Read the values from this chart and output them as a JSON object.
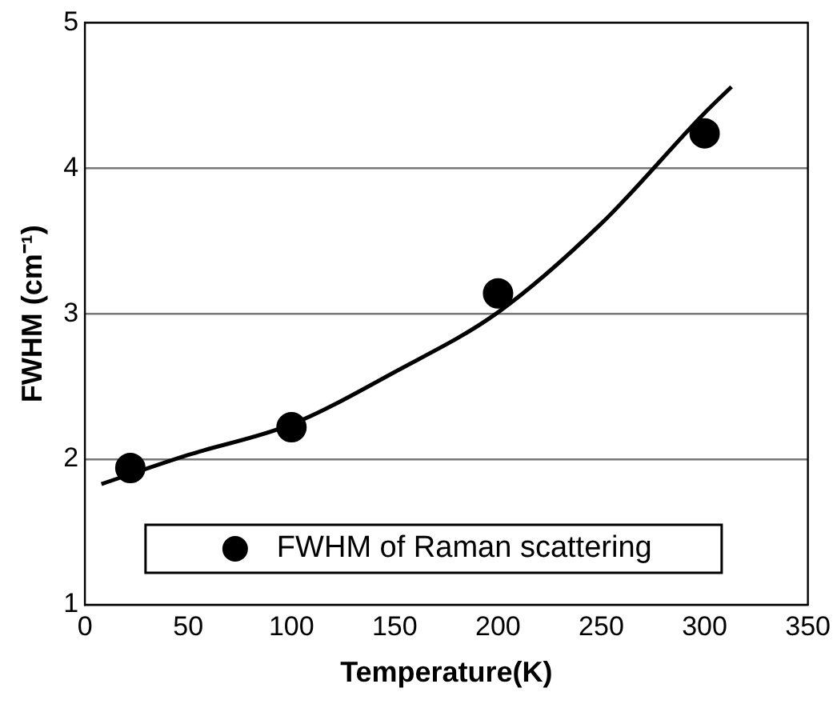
{
  "chart_data": {
    "type": "scatter",
    "xlabel": "Temperature(K)",
    "ylabel": "FWHM (cm⁻¹)",
    "xlim": [
      0,
      350
    ],
    "xticks": [
      0,
      50,
      100,
      150,
      200,
      250,
      300,
      350
    ],
    "ylim": [
      1,
      5
    ],
    "yticks": [
      1,
      2,
      3,
      4,
      5
    ],
    "grid": "y",
    "legend": "bottom",
    "series": [
      {
        "name": "FWHM of Raman scattering",
        "color": "#000000",
        "marker": "circle",
        "x": [
          22,
          100,
          200,
          300
        ],
        "values": [
          1.94,
          2.22,
          3.14,
          4.24
        ]
      },
      {
        "type": "line",
        "color": "#000000",
        "marker": "none",
        "x": [
          8,
          50,
          100,
          150,
          200,
          250,
          300,
          313
        ],
        "values": [
          1.83,
          2.03,
          2.24,
          2.6,
          3.01,
          3.62,
          4.38,
          4.56
        ]
      }
    ]
  }
}
